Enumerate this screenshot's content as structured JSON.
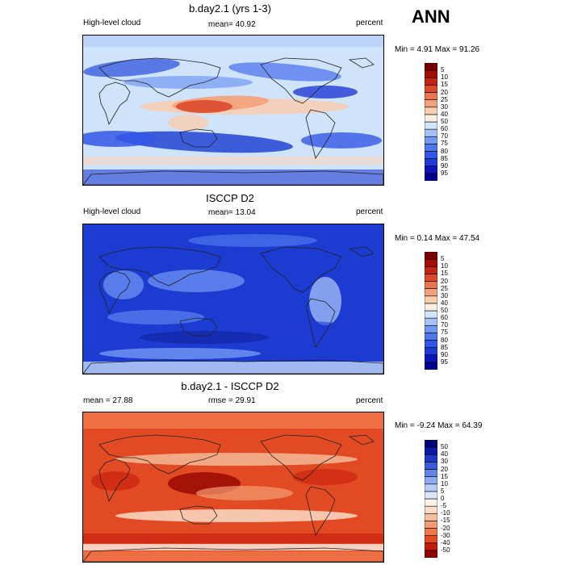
{
  "header": {
    "season": "ANN"
  },
  "panels": [
    {
      "title": "b.day2.1 (yrs 1-3)",
      "left_text": "High-level cloud",
      "center_text": "mean=  40.92",
      "right_text": "percent",
      "stats_text": "Min =   4.91 Max =  91.26",
      "palette": "abs",
      "bg": "#cfe3fb"
    },
    {
      "title": "ISCCP D2",
      "left_text": "High-level cloud",
      "center_text": "mean=  13.04",
      "right_text": "percent",
      "stats_text": "Min =   0.14 Max =  47.54",
      "palette": "abs",
      "bg": "#1c3bd0"
    },
    {
      "title": "b.day2.1 - ISCCP D2",
      "left_text": "mean =  27.88",
      "center_text": "rmse =  29.91",
      "right_text": "percent",
      "stats_text": "Min =  -9.24 Max =  64.39",
      "palette": "diff",
      "bg": "#e24a23"
    }
  ],
  "chart_data": [
    {
      "type": "heatmap",
      "title": "b.day2.1 (yrs 1-3)",
      "subtitle": "High-level cloud",
      "units": "percent",
      "mean": 40.92,
      "min": 4.91,
      "max": 91.26,
      "colorbar_levels": [
        "5",
        "10",
        "15",
        "20",
        "25",
        "30",
        "40",
        "50",
        "60",
        "70",
        "75",
        "80",
        "85",
        "90",
        "95"
      ],
      "colorbar_colors": [
        "#00008f",
        "#0c16b8",
        "#1f3ad6",
        "#3356e6",
        "#4d76ef",
        "#7298f3",
        "#a6c2f7",
        "#d3e5fb",
        "#fbeee0",
        "#f9cdb0",
        "#f4a07a",
        "#ea7550",
        "#dc4a2a",
        "#c22612",
        "#a20e04",
        "#780000"
      ]
    },
    {
      "type": "heatmap",
      "title": "ISCCP D2",
      "subtitle": "High-level cloud",
      "units": "percent",
      "mean": 13.04,
      "min": 0.14,
      "max": 47.54,
      "colorbar_levels": [
        "5",
        "10",
        "15",
        "20",
        "25",
        "30",
        "40",
        "50",
        "60",
        "70",
        "75",
        "80",
        "85",
        "90",
        "95"
      ],
      "colorbar_colors": [
        "#00008f",
        "#0c16b8",
        "#1f3ad6",
        "#3356e6",
        "#4d76ef",
        "#7298f3",
        "#a6c2f7",
        "#d3e5fb",
        "#fbeee0",
        "#f9cdb0",
        "#f4a07a",
        "#ea7550",
        "#dc4a2a",
        "#c22612",
        "#a20e04",
        "#780000"
      ]
    },
    {
      "type": "heatmap",
      "title": "b.day2.1 - ISCCP D2",
      "units": "percent",
      "mean": 27.88,
      "rmse": 29.91,
      "min": -9.24,
      "max": 64.39,
      "colorbar_levels": [
        "50",
        "40",
        "30",
        "20",
        "15",
        "10",
        "5",
        "0",
        "-5",
        "-10",
        "-15",
        "-20",
        "-30",
        "-40",
        "-50"
      ],
      "colorbar_colors": [
        "#8f0000",
        "#c41a0a",
        "#e24a23",
        "#f07848",
        "#f59c72",
        "#f8bf9d",
        "#fbdcc7",
        "#fdf1e8",
        "#dbe6fb",
        "#b8cdf6",
        "#8daaef",
        "#6383e6",
        "#3b5cda",
        "#1f39c4",
        "#0b1aa4",
        "#00007a"
      ]
    }
  ]
}
